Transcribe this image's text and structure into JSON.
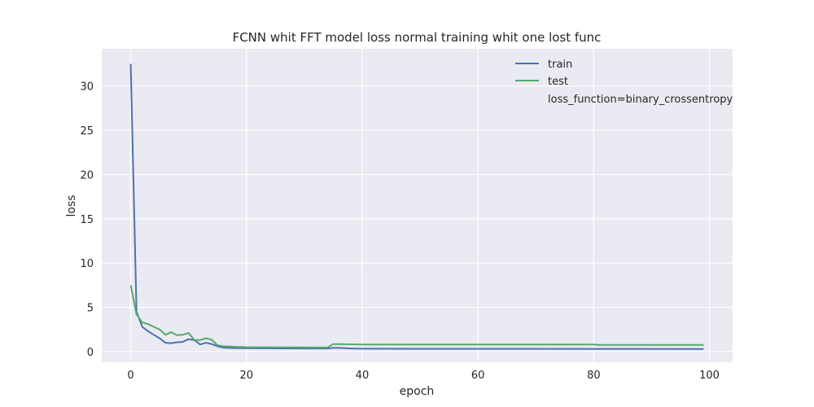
{
  "chart_data": {
    "type": "line",
    "title": "FCNN whit FFT model loss normal training whit one lost func",
    "xlabel": "epoch",
    "ylabel": "loss",
    "xlim": [
      -5,
      104
    ],
    "ylim": [
      -1.2,
      34.2
    ],
    "x_ticks": [
      0,
      20,
      40,
      60,
      80,
      100
    ],
    "y_ticks": [
      0,
      5,
      10,
      15,
      20,
      25,
      30
    ],
    "grid": true,
    "legend_position": "top-right",
    "legend_note": "loss_function=binary_crossentropy",
    "series": [
      {
        "name": "train",
        "color": "#4c72b0",
        "points": [
          [
            0,
            32.5
          ],
          [
            1,
            4.5
          ],
          [
            2,
            2.8
          ],
          [
            3,
            2.3
          ],
          [
            4,
            1.9
          ],
          [
            5,
            1.5
          ],
          [
            6,
            1.0
          ],
          [
            7,
            0.95
          ],
          [
            8,
            1.05
          ],
          [
            9,
            1.1
          ],
          [
            10,
            1.4
          ],
          [
            11,
            1.3
          ],
          [
            12,
            0.8
          ],
          [
            13,
            1.0
          ],
          [
            14,
            0.85
          ],
          [
            15,
            0.6
          ],
          [
            16,
            0.45
          ],
          [
            17,
            0.42
          ],
          [
            18,
            0.4
          ],
          [
            20,
            0.38
          ],
          [
            25,
            0.36
          ],
          [
            30,
            0.35
          ],
          [
            34,
            0.35
          ],
          [
            35,
            0.42
          ],
          [
            36,
            0.42
          ],
          [
            37,
            0.38
          ],
          [
            38,
            0.35
          ],
          [
            40,
            0.33
          ],
          [
            60,
            0.32
          ],
          [
            80,
            0.31
          ],
          [
            99,
            0.3
          ]
        ]
      },
      {
        "name": "test",
        "color": "#55a868",
        "points": [
          [
            0,
            7.5
          ],
          [
            1,
            4.2
          ],
          [
            2,
            3.3
          ],
          [
            3,
            3.1
          ],
          [
            4,
            2.8
          ],
          [
            5,
            2.5
          ],
          [
            6,
            1.9
          ],
          [
            7,
            2.2
          ],
          [
            8,
            1.85
          ],
          [
            9,
            1.9
          ],
          [
            10,
            2.1
          ],
          [
            11,
            1.3
          ],
          [
            12,
            1.3
          ],
          [
            13,
            1.5
          ],
          [
            14,
            1.35
          ],
          [
            15,
            0.7
          ],
          [
            16,
            0.6
          ],
          [
            17,
            0.58
          ],
          [
            18,
            0.55
          ],
          [
            20,
            0.5
          ],
          [
            25,
            0.48
          ],
          [
            30,
            0.47
          ],
          [
            34,
            0.46
          ],
          [
            35,
            0.85
          ],
          [
            36,
            0.85
          ],
          [
            38,
            0.82
          ],
          [
            40,
            0.8
          ],
          [
            60,
            0.8
          ],
          [
            80,
            0.8
          ],
          [
            81,
            0.75
          ],
          [
            99,
            0.75
          ]
        ]
      }
    ]
  }
}
